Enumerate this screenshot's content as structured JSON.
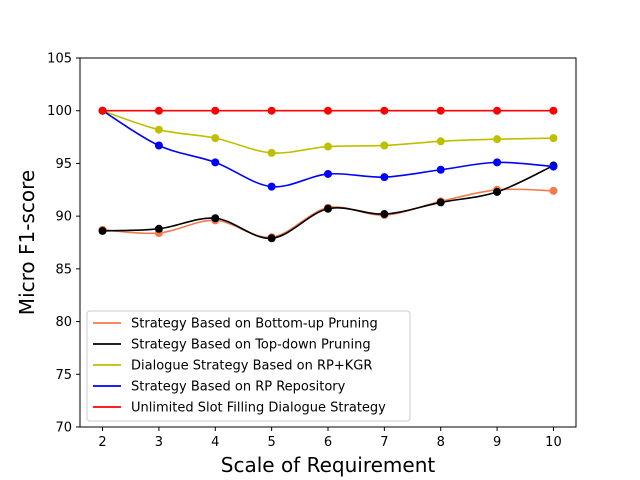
{
  "chart_data": {
    "type": "line",
    "title": "",
    "xlabel": "Scale of Requirement",
    "ylabel": "Micro F1-score",
    "x": [
      2,
      3,
      4,
      5,
      6,
      7,
      8,
      9,
      10
    ],
    "xlim": [
      1.6,
      10.4
    ],
    "ylim": [
      70,
      105
    ],
    "xticks": [
      "2",
      "3",
      "4",
      "5",
      "6",
      "7",
      "8",
      "9",
      "10"
    ],
    "yticks": [
      "70",
      "75",
      "80",
      "85",
      "90",
      "95",
      "100",
      "105"
    ],
    "grid": false,
    "legend_position": "lower-left",
    "series": [
      {
        "name": "Strategy Based on Bottom-up Pruning",
        "color": "#f4794b",
        "values": [
          88.7,
          88.4,
          89.6,
          88.0,
          90.8,
          90.1,
          91.4,
          92.5,
          92.4
        ]
      },
      {
        "name": "Strategy Based on Top-down Pruning",
        "color": "#000000",
        "values": [
          88.6,
          88.8,
          89.8,
          87.9,
          90.7,
          90.2,
          91.3,
          92.3,
          94.8
        ]
      },
      {
        "name": "Dialogue Strategy Based on RP+KGR",
        "color": "#bfbf00",
        "values": [
          100.0,
          98.2,
          97.4,
          96.0,
          96.6,
          96.7,
          97.1,
          97.3,
          97.4
        ]
      },
      {
        "name": "Strategy Based on RP Repository",
        "color": "#0000ff",
        "values": [
          100.0,
          96.7,
          95.1,
          92.8,
          94.0,
          93.7,
          94.4,
          95.1,
          94.7
        ]
      },
      {
        "name": "Unlimited Slot Filling Dialogue Strategy",
        "color": "#ff0000",
        "values": [
          100.0,
          100.0,
          100.0,
          100.0,
          100.0,
          100.0,
          100.0,
          100.0,
          100.0
        ]
      }
    ]
  }
}
